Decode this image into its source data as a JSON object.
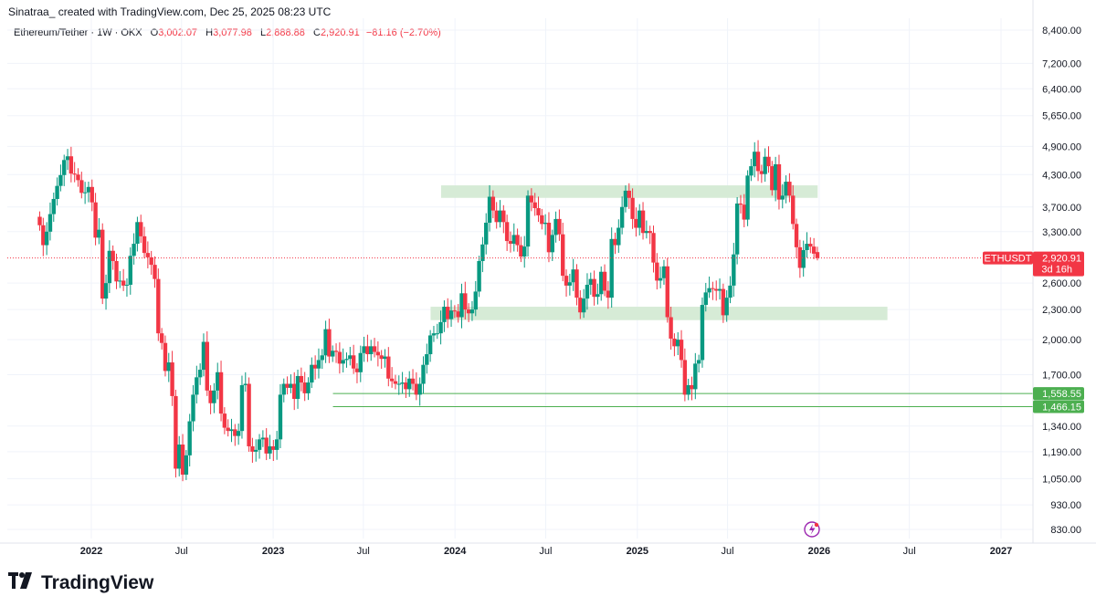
{
  "header": {
    "author_line": "Sinatraa_ created with TradingView.com, Dec 25, 2025 08:23 UTC"
  },
  "legend": {
    "symbol": "Ethereum/Tether · 1W · OKX",
    "open_label": "O",
    "open": "3,002.07",
    "high_label": "H",
    "high": "3,077.98",
    "low_label": "L",
    "low": "2,888.88",
    "close_label": "C",
    "close": "2,920.91",
    "change": "−81.16 (−2.70%)"
  },
  "brand": {
    "name": "TradingView",
    "logo_icon": "tradingview-logo-icon"
  },
  "colors": {
    "up": "#089981",
    "down": "#f23645",
    "zone": "#d6ebd6",
    "level_line": "#4caf50",
    "price_badge": "#f23645",
    "level_badge": "#4caf50",
    "alert_icon": "#9c27b0"
  },
  "chart_data": {
    "type": "candlestick",
    "title": "",
    "symbol": "ETHUSDT",
    "timeframe": "1W",
    "scale": "log",
    "grid": true,
    "price_axis_ticks": [
      "8,400.00",
      "7,200.00",
      "6,400.00",
      "5,650.00",
      "4,900.00",
      "4,300.00",
      "3,700.00",
      "3,300.00",
      "2,600.00",
      "2,300.00",
      "2,000.00",
      "1,700.00",
      "1,340.00",
      "1,190.00",
      "1,050.00",
      "930.00",
      "830.00"
    ],
    "time_axis_ticks": [
      {
        "label": "2022",
        "bold": true,
        "date": "2022-01-01"
      },
      {
        "label": "Jul",
        "bold": false,
        "date": "2022-07-01"
      },
      {
        "label": "2023",
        "bold": true,
        "date": "2023-01-01"
      },
      {
        "label": "Jul",
        "bold": false,
        "date": "2023-07-01"
      },
      {
        "label": "2024",
        "bold": true,
        "date": "2024-01-01"
      },
      {
        "label": "Jul",
        "bold": false,
        "date": "2024-07-01"
      },
      {
        "label": "2025",
        "bold": true,
        "date": "2025-01-01"
      },
      {
        "label": "Jul",
        "bold": false,
        "date": "2025-07-01"
      },
      {
        "label": "2026",
        "bold": true,
        "date": "2026-01-01"
      },
      {
        "label": "Jul",
        "bold": false,
        "date": "2026-07-01"
      },
      {
        "label": "2027",
        "bold": true,
        "date": "2027-01-01"
      }
    ],
    "current_price": {
      "label": "ETHUSDT",
      "value": "2,920.91",
      "countdown": "3d 16h",
      "price": 2920.91
    },
    "horizontal_levels": [
      {
        "label": "1,558.55",
        "price": 1558.55,
        "from": "2023-05-01"
      },
      {
        "label": "1,466.15",
        "price": 1466.15,
        "from": "2023-05-01"
      }
    ],
    "zones": [
      {
        "from": "2023-12-04",
        "to": "2025-12-29",
        "low": 3860,
        "high": 4090
      },
      {
        "from": "2023-11-13",
        "to": "2026-05-18",
        "low": 2190,
        "high": 2330
      }
    ],
    "weekly_closes": [
      [
        "2021-09-13",
        3400
      ],
      [
        "2021-09-20",
        3100
      ],
      [
        "2021-09-27",
        3300
      ],
      [
        "2021-10-04",
        3580
      ],
      [
        "2021-10-11",
        3840
      ],
      [
        "2021-10-18",
        4080
      ],
      [
        "2021-10-25",
        4290
      ],
      [
        "2021-11-01",
        4600
      ],
      [
        "2021-11-08",
        4680
      ],
      [
        "2021-11-15",
        4320
      ],
      [
        "2021-11-22",
        4300
      ],
      [
        "2021-11-29",
        4190
      ],
      [
        "2021-12-06",
        3950
      ],
      [
        "2021-12-13",
        3960
      ],
      [
        "2021-12-20",
        4060
      ],
      [
        "2021-12-27",
        3780
      ],
      [
        "2022-01-03",
        3210
      ],
      [
        "2022-01-10",
        3330
      ],
      [
        "2022-01-17",
        2420
      ],
      [
        "2022-01-24",
        2600
      ],
      [
        "2022-01-31",
        3020
      ],
      [
        "2022-02-07",
        2880
      ],
      [
        "2022-02-14",
        2620
      ],
      [
        "2022-02-21",
        2630
      ],
      [
        "2022-02-28",
        2570
      ],
      [
        "2022-03-07",
        2580
      ],
      [
        "2022-03-14",
        2950
      ],
      [
        "2022-03-21",
        3120
      ],
      [
        "2022-03-28",
        3450
      ],
      [
        "2022-04-04",
        3230
      ],
      [
        "2022-04-11",
        2990
      ],
      [
        "2022-04-18",
        2930
      ],
      [
        "2022-04-25",
        2830
      ],
      [
        "2022-05-02",
        2650
      ],
      [
        "2022-05-09",
        2060
      ],
      [
        "2022-05-16",
        1970
      ],
      [
        "2022-05-23",
        1730
      ],
      [
        "2022-05-30",
        1800
      ],
      [
        "2022-06-06",
        1540
      ],
      [
        "2022-06-13",
        1100
      ],
      [
        "2022-06-20",
        1230
      ],
      [
        "2022-06-27",
        1070
      ],
      [
        "2022-07-04",
        1170
      ],
      [
        "2022-07-11",
        1370
      ],
      [
        "2022-07-18",
        1550
      ],
      [
        "2022-07-25",
        1680
      ],
      [
        "2022-08-01",
        1740
      ],
      [
        "2022-08-08",
        1980
      ],
      [
        "2022-08-15",
        1580
      ],
      [
        "2022-08-22",
        1490
      ],
      [
        "2022-08-29",
        1580
      ],
      [
        "2022-09-05",
        1720
      ],
      [
        "2022-09-12",
        1420
      ],
      [
        "2022-09-19",
        1330
      ],
      [
        "2022-09-26",
        1310
      ],
      [
        "2022-10-03",
        1320
      ],
      [
        "2022-10-10",
        1280
      ],
      [
        "2022-10-17",
        1310
      ],
      [
        "2022-10-24",
        1620
      ],
      [
        "2022-10-31",
        1630
      ],
      [
        "2022-11-07",
        1220
      ],
      [
        "2022-11-14",
        1190
      ],
      [
        "2022-11-21",
        1200
      ],
      [
        "2022-11-28",
        1260
      ],
      [
        "2022-12-05",
        1270
      ],
      [
        "2022-12-12",
        1180
      ],
      [
        "2022-12-19",
        1220
      ],
      [
        "2022-12-26",
        1200
      ],
      [
        "2023-01-02",
        1260
      ],
      [
        "2023-01-09",
        1550
      ],
      [
        "2023-01-16",
        1630
      ],
      [
        "2023-01-23",
        1600
      ],
      [
        "2023-01-30",
        1630
      ],
      [
        "2023-02-06",
        1520
      ],
      [
        "2023-02-13",
        1690
      ],
      [
        "2023-02-20",
        1640
      ],
      [
        "2023-02-27",
        1560
      ],
      [
        "2023-03-06",
        1640
      ],
      [
        "2023-03-13",
        1780
      ],
      [
        "2023-03-20",
        1750
      ],
      [
        "2023-03-27",
        1820
      ],
      [
        "2023-04-03",
        1860
      ],
      [
        "2023-04-10",
        2100
      ],
      [
        "2023-04-17",
        1850
      ],
      [
        "2023-04-24",
        1900
      ],
      [
        "2023-05-01",
        1890
      ],
      [
        "2023-05-08",
        1790
      ],
      [
        "2023-05-15",
        1820
      ],
      [
        "2023-05-22",
        1830
      ],
      [
        "2023-05-29",
        1860
      ],
      [
        "2023-06-05",
        1750
      ],
      [
        "2023-06-12",
        1720
      ],
      [
        "2023-06-19",
        1880
      ],
      [
        "2023-06-26",
        1940
      ],
      [
        "2023-07-03",
        1870
      ],
      [
        "2023-07-10",
        1940
      ],
      [
        "2023-07-17",
        1890
      ],
      [
        "2023-07-24",
        1860
      ],
      [
        "2023-07-31",
        1830
      ],
      [
        "2023-08-07",
        1850
      ],
      [
        "2023-08-14",
        1670
      ],
      [
        "2023-08-21",
        1650
      ],
      [
        "2023-08-28",
        1630
      ],
      [
        "2023-09-04",
        1630
      ],
      [
        "2023-09-11",
        1640
      ],
      [
        "2023-09-18",
        1590
      ],
      [
        "2023-09-25",
        1670
      ],
      [
        "2023-10-02",
        1630
      ],
      [
        "2023-10-09",
        1550
      ],
      [
        "2023-10-16",
        1630
      ],
      [
        "2023-10-23",
        1780
      ],
      [
        "2023-10-30",
        1870
      ],
      [
        "2023-11-06",
        2040
      ],
      [
        "2023-11-13",
        2060
      ],
      [
        "2023-11-20",
        2060
      ],
      [
        "2023-11-27",
        2170
      ],
      [
        "2023-12-04",
        2330
      ],
      [
        "2023-12-11",
        2200
      ],
      [
        "2023-12-18",
        2290
      ],
      [
        "2023-12-25",
        2280
      ],
      [
        "2024-01-01",
        2220
      ],
      [
        "2024-01-08",
        2480
      ],
      [
        "2024-01-15",
        2300
      ],
      [
        "2024-01-22",
        2260
      ],
      [
        "2024-01-29",
        2300
      ],
      [
        "2024-02-05",
        2500
      ],
      [
        "2024-02-12",
        2880
      ],
      [
        "2024-02-19",
        3110
      ],
      [
        "2024-02-26",
        3440
      ],
      [
        "2024-03-04",
        3880
      ],
      [
        "2024-03-11",
        3640
      ],
      [
        "2024-03-18",
        3450
      ],
      [
        "2024-03-25",
        3640
      ],
      [
        "2024-04-01",
        3450
      ],
      [
        "2024-04-08",
        3160
      ],
      [
        "2024-04-15",
        3120
      ],
      [
        "2024-04-22",
        3250
      ],
      [
        "2024-04-29",
        3100
      ],
      [
        "2024-05-06",
        2940
      ],
      [
        "2024-05-13",
        3080
      ],
      [
        "2024-05-20",
        3900
      ],
      [
        "2024-05-27",
        3780
      ],
      [
        "2024-06-03",
        3680
      ],
      [
        "2024-06-10",
        3560
      ],
      [
        "2024-06-17",
        3420
      ],
      [
        "2024-06-24",
        3440
      ],
      [
        "2024-07-01",
        3000
      ],
      [
        "2024-07-08",
        3250
      ],
      [
        "2024-07-15",
        3500
      ],
      [
        "2024-07-22",
        3260
      ],
      [
        "2024-07-29",
        2690
      ],
      [
        "2024-08-05",
        2570
      ],
      [
        "2024-08-12",
        2610
      ],
      [
        "2024-08-19",
        2770
      ],
      [
        "2024-08-26",
        2430
      ],
      [
        "2024-09-02",
        2270
      ],
      [
        "2024-09-09",
        2420
      ],
      [
        "2024-09-16",
        2580
      ],
      [
        "2024-09-23",
        2650
      ],
      [
        "2024-09-30",
        2440
      ],
      [
        "2024-10-07",
        2470
      ],
      [
        "2024-10-14",
        2740
      ],
      [
        "2024-10-21",
        2510
      ],
      [
        "2024-10-28",
        2430
      ],
      [
        "2024-11-04",
        3190
      ],
      [
        "2024-11-11",
        3100
      ],
      [
        "2024-11-18",
        3360
      ],
      [
        "2024-11-25",
        3700
      ],
      [
        "2024-12-02",
        3990
      ],
      [
        "2024-12-09",
        3860
      ],
      [
        "2024-12-16",
        3500
      ],
      [
        "2024-12-23",
        3360
      ],
      [
        "2024-12-30",
        3640
      ],
      [
        "2025-01-06",
        3280
      ],
      [
        "2025-01-13",
        3310
      ],
      [
        "2025-01-20",
        3280
      ],
      [
        "2025-01-27",
        2860
      ],
      [
        "2025-02-03",
        2630
      ],
      [
        "2025-02-10",
        2660
      ],
      [
        "2025-02-17",
        2810
      ],
      [
        "2025-02-24",
        2220
      ],
      [
        "2025-03-03",
        2010
      ],
      [
        "2025-03-10",
        1940
      ],
      [
        "2025-03-17",
        2000
      ],
      [
        "2025-03-24",
        1820
      ],
      [
        "2025-03-31",
        1550
      ],
      [
        "2025-04-07",
        1620
      ],
      [
        "2025-04-14",
        1590
      ],
      [
        "2025-04-21",
        1790
      ],
      [
        "2025-04-28",
        1820
      ],
      [
        "2025-05-05",
        2350
      ],
      [
        "2025-05-12",
        2490
      ],
      [
        "2025-05-19",
        2540
      ],
      [
        "2025-05-26",
        2530
      ],
      [
        "2025-06-02",
        2510
      ],
      [
        "2025-06-09",
        2530
      ],
      [
        "2025-06-16",
        2240
      ],
      [
        "2025-06-23",
        2430
      ],
      [
        "2025-06-30",
        2570
      ],
      [
        "2025-07-07",
        2970
      ],
      [
        "2025-07-14",
        3760
      ],
      [
        "2025-07-21",
        3740
      ],
      [
        "2025-07-28",
        3490
      ],
      [
        "2025-08-04",
        4280
      ],
      [
        "2025-08-11",
        4470
      ],
      [
        "2025-08-18",
        4780
      ],
      [
        "2025-08-25",
        4370
      ],
      [
        "2025-09-01",
        4310
      ],
      [
        "2025-09-08",
        4670
      ],
      [
        "2025-09-15",
        4470
      ],
      [
        "2025-09-22",
        4000
      ],
      [
        "2025-09-29",
        4510
      ],
      [
        "2025-10-06",
        3830
      ],
      [
        "2025-10-13",
        3900
      ],
      [
        "2025-10-20",
        4160
      ],
      [
        "2025-10-27",
        3900
      ],
      [
        "2025-11-03",
        3420
      ],
      [
        "2025-11-10",
        3070
      ],
      [
        "2025-11-17",
        2790
      ],
      [
        "2025-11-24",
        3030
      ],
      [
        "2025-12-01",
        3120
      ],
      [
        "2025-12-08",
        3080
      ],
      [
        "2025-12-15",
        2980
      ],
      [
        "2025-12-22",
        2920.91
      ]
    ]
  }
}
